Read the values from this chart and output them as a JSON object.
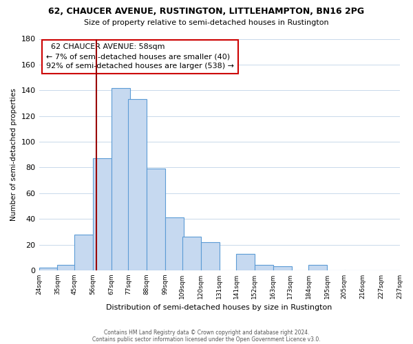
{
  "title": "62, CHAUCER AVENUE, RUSTINGTON, LITTLEHAMPTON, BN16 2PG",
  "subtitle": "Size of property relative to semi-detached houses in Rustington",
  "xlabel": "Distribution of semi-detached houses by size in Rustington",
  "ylabel": "Number of semi-detached properties",
  "footer_line1": "Contains HM Land Registry data © Crown copyright and database right 2024.",
  "footer_line2": "Contains public sector information licensed under the Open Government Licence v3.0.",
  "bar_left_edges": [
    24,
    35,
    45,
    56,
    67,
    77,
    88,
    99,
    109,
    120,
    131,
    141,
    152,
    163,
    173,
    184,
    195,
    205,
    216,
    227
  ],
  "bar_heights": [
    2,
    4,
    28,
    87,
    142,
    133,
    79,
    41,
    26,
    22,
    0,
    13,
    4,
    3,
    0,
    4,
    0,
    0,
    0,
    0
  ],
  "bin_width": 11,
  "bar_color": "#c6d9f0",
  "bar_edge_color": "#5b9bd5",
  "x_tick_labels": [
    "24sqm",
    "35sqm",
    "45sqm",
    "56sqm",
    "67sqm",
    "77sqm",
    "88sqm",
    "99sqm",
    "109sqm",
    "120sqm",
    "131sqm",
    "141sqm",
    "152sqm",
    "163sqm",
    "173sqm",
    "184sqm",
    "195sqm",
    "205sqm",
    "216sqm",
    "227sqm",
    "237sqm"
  ],
  "ylim": [
    0,
    180
  ],
  "yticks": [
    0,
    20,
    40,
    60,
    80,
    100,
    120,
    140,
    160,
    180
  ],
  "property_size": 58,
  "property_label": "62 CHAUCER AVENUE: 58sqm",
  "pct_smaller": 7,
  "count_smaller": 40,
  "pct_larger": 92,
  "count_larger": 538,
  "annotation_box_color": "#ffffff",
  "annotation_box_edge_color": "#cc0000",
  "vline_color": "#990000",
  "background_color": "#ffffff",
  "grid_color": "#c8d8ea"
}
